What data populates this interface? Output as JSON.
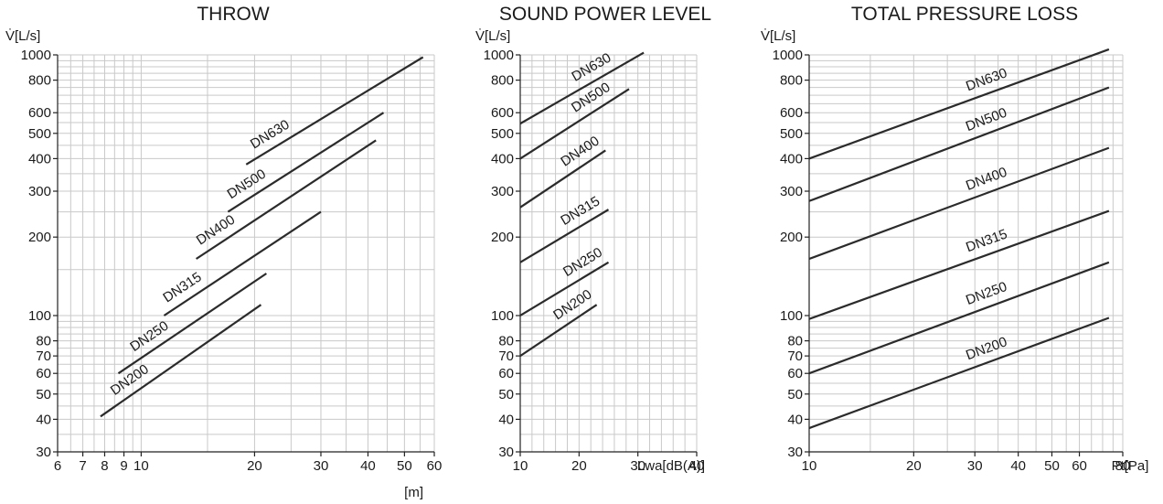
{
  "chart_data": [
    {
      "type": "line",
      "title": "THROW",
      "ylabel": "V̇[L/s]",
      "xlabel": "[m]",
      "x_scale": "log",
      "y_scale": "log",
      "xlim": [
        6,
        60
      ],
      "ylim": [
        30,
        1000
      ],
      "x_ticks": [
        6,
        7,
        8,
        9,
        10,
        20,
        30,
        40,
        50,
        60
      ],
      "x_tick_labels": [
        "6",
        "7",
        "8",
        "9",
        "10",
        "20",
        "30",
        "40",
        "50",
        "60"
      ],
      "y_ticks": [
        30,
        40,
        50,
        60,
        70,
        80,
        100,
        200,
        300,
        400,
        500,
        600,
        800,
        1000
      ],
      "y_tick_labels": [
        "30",
        "40",
        "50",
        "60",
        "70",
        "80",
        "100",
        "200",
        "300",
        "400",
        "500",
        "600",
        "800",
        "1000"
      ],
      "grid": true,
      "series": [
        {
          "name": "DN200",
          "x": [
            7.8,
            20.8
          ],
          "y": [
            41,
            110
          ]
        },
        {
          "name": "DN250",
          "x": [
            8.7,
            21.5
          ],
          "y": [
            60,
            145
          ]
        },
        {
          "name": "DN315",
          "x": [
            11.5,
            30
          ],
          "y": [
            100,
            250
          ]
        },
        {
          "name": "DN400",
          "x": [
            14,
            42
          ],
          "y": [
            165,
            470
          ]
        },
        {
          "name": "DN500",
          "x": [
            17,
            44
          ],
          "y": [
            250,
            600
          ]
        },
        {
          "name": "DN630",
          "x": [
            19,
            56
          ],
          "y": [
            380,
            980
          ]
        }
      ]
    },
    {
      "type": "line",
      "title": "SOUND POWER LEVEL",
      "ylabel": "V̇[L/s]",
      "xlabel": "Lwa[dB(A)]",
      "x_scale": "linear",
      "y_scale": "log",
      "xlim": [
        10,
        40
      ],
      "ylim": [
        30,
        1000
      ],
      "x_ticks": [
        10,
        20,
        30,
        40
      ],
      "x_tick_labels": [
        "10",
        "20",
        "30",
        "40"
      ],
      "y_ticks": [
        30,
        40,
        50,
        60,
        70,
        80,
        100,
        200,
        300,
        400,
        500,
        600,
        800,
        1000
      ],
      "y_tick_labels": [
        "30",
        "40",
        "50",
        "60",
        "70",
        "80",
        "100",
        "200",
        "300",
        "400",
        "500",
        "600",
        "800",
        "1000"
      ],
      "grid": true,
      "series": [
        {
          "name": "DN200",
          "x": [
            10,
            23
          ],
          "y": [
            70,
            110
          ]
        },
        {
          "name": "DN250",
          "x": [
            10,
            25
          ],
          "y": [
            100,
            160
          ]
        },
        {
          "name": "DN315",
          "x": [
            10,
            25
          ],
          "y": [
            160,
            255
          ]
        },
        {
          "name": "DN400",
          "x": [
            10,
            24.5
          ],
          "y": [
            260,
            430
          ]
        },
        {
          "name": "DN500",
          "x": [
            10,
            28.5
          ],
          "y": [
            400,
            740
          ]
        },
        {
          "name": "DN630",
          "x": [
            10,
            31
          ],
          "y": [
            545,
            1020
          ]
        }
      ]
    },
    {
      "type": "line",
      "title": "TOTAL PRESSURE LOSS",
      "ylabel": "V̇[L/s]",
      "xlabel": "Pt[Pa]",
      "x_scale": "log",
      "y_scale": "log",
      "xlim": [
        10,
        80
      ],
      "ylim": [
        30,
        1000
      ],
      "x_ticks": [
        10,
        20,
        30,
        40,
        50,
        60,
        80
      ],
      "x_tick_labels": [
        "10",
        "20",
        "30",
        "40",
        "50",
        "60",
        "80"
      ],
      "y_ticks": [
        30,
        40,
        50,
        60,
        70,
        80,
        100,
        200,
        300,
        400,
        500,
        600,
        800,
        1000
      ],
      "y_tick_labels": [
        "30",
        "40",
        "50",
        "60",
        "70",
        "80",
        "100",
        "200",
        "300",
        "400",
        "500",
        "600",
        "800",
        "1000"
      ],
      "grid": true,
      "series": [
        {
          "name": "DN200",
          "x": [
            10,
            73
          ],
          "y": [
            37,
            98
          ]
        },
        {
          "name": "DN250",
          "x": [
            10,
            73
          ],
          "y": [
            60,
            160
          ]
        },
        {
          "name": "DN315",
          "x": [
            10,
            73
          ],
          "y": [
            97,
            252
          ]
        },
        {
          "name": "DN400",
          "x": [
            10,
            73
          ],
          "y": [
            165,
            440
          ]
        },
        {
          "name": "DN500",
          "x": [
            10,
            73
          ],
          "y": [
            275,
            750
          ]
        },
        {
          "name": "DN630",
          "x": [
            10,
            73
          ],
          "y": [
            400,
            1050
          ]
        }
      ]
    }
  ]
}
